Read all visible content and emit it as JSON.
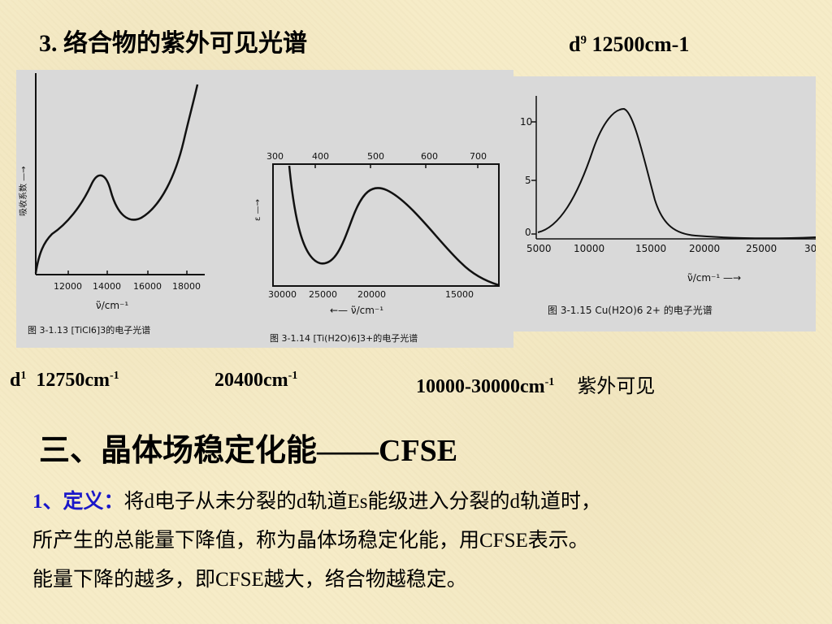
{
  "heading": "3. 络合物的紫外可见光谱",
  "d9_label": "d",
  "d9_sup": "9",
  "d9_value": "12500cm-1",
  "figures": [
    {
      "caption": "图 3-1.13 [TiCl6]3的电子光谱",
      "ylabel": "吸收系数 —→",
      "xticks": [
        "12000",
        "14000",
        "16000",
        "18000"
      ],
      "xlabel": "ν̃/cm⁻¹"
    },
    {
      "caption": "图 3-1.14 [Ti(H2O)6]3+的电子光谱",
      "ylabel": "ε —→",
      "top_ticks": [
        "300",
        "400",
        "500",
        "600",
        "700"
      ],
      "xticks": [
        "30000",
        "25000",
        "20000",
        "15000"
      ],
      "xlabel": "←— ν̃/cm⁻¹"
    },
    {
      "caption": "图 3-1.15 Cu(H2O)6 2+ 的电子光谱",
      "yticks": [
        "10",
        "5",
        "0"
      ],
      "xticks": [
        "5000",
        "10000",
        "15000",
        "20000",
        "25000",
        "30"
      ],
      "xlabel": "ν̃/cm⁻¹ —→"
    }
  ],
  "measures": {
    "d1_label": "d",
    "d1_sup": "1",
    "d1_value": "12750cm",
    "d1_unit_sup": "-1",
    "v2_value": "20400cm",
    "v2_unit_sup": "-1",
    "range_value": "10000-30000cm",
    "range_unit_sup": "-1",
    "region": "紫外可见"
  },
  "section_title": "三、晶体场稳定化能——CFSE",
  "definition": {
    "label": "1、定义：",
    "line1": "将d电子从未分裂的d轨道Es能级进入分裂的d轨道时，",
    "line2": "所产生的总能量下降值，称为晶体场稳定化能，用CFSE表示。",
    "line3": "能量下降的越多，即CFSE越大，络合物越稳定。"
  }
}
